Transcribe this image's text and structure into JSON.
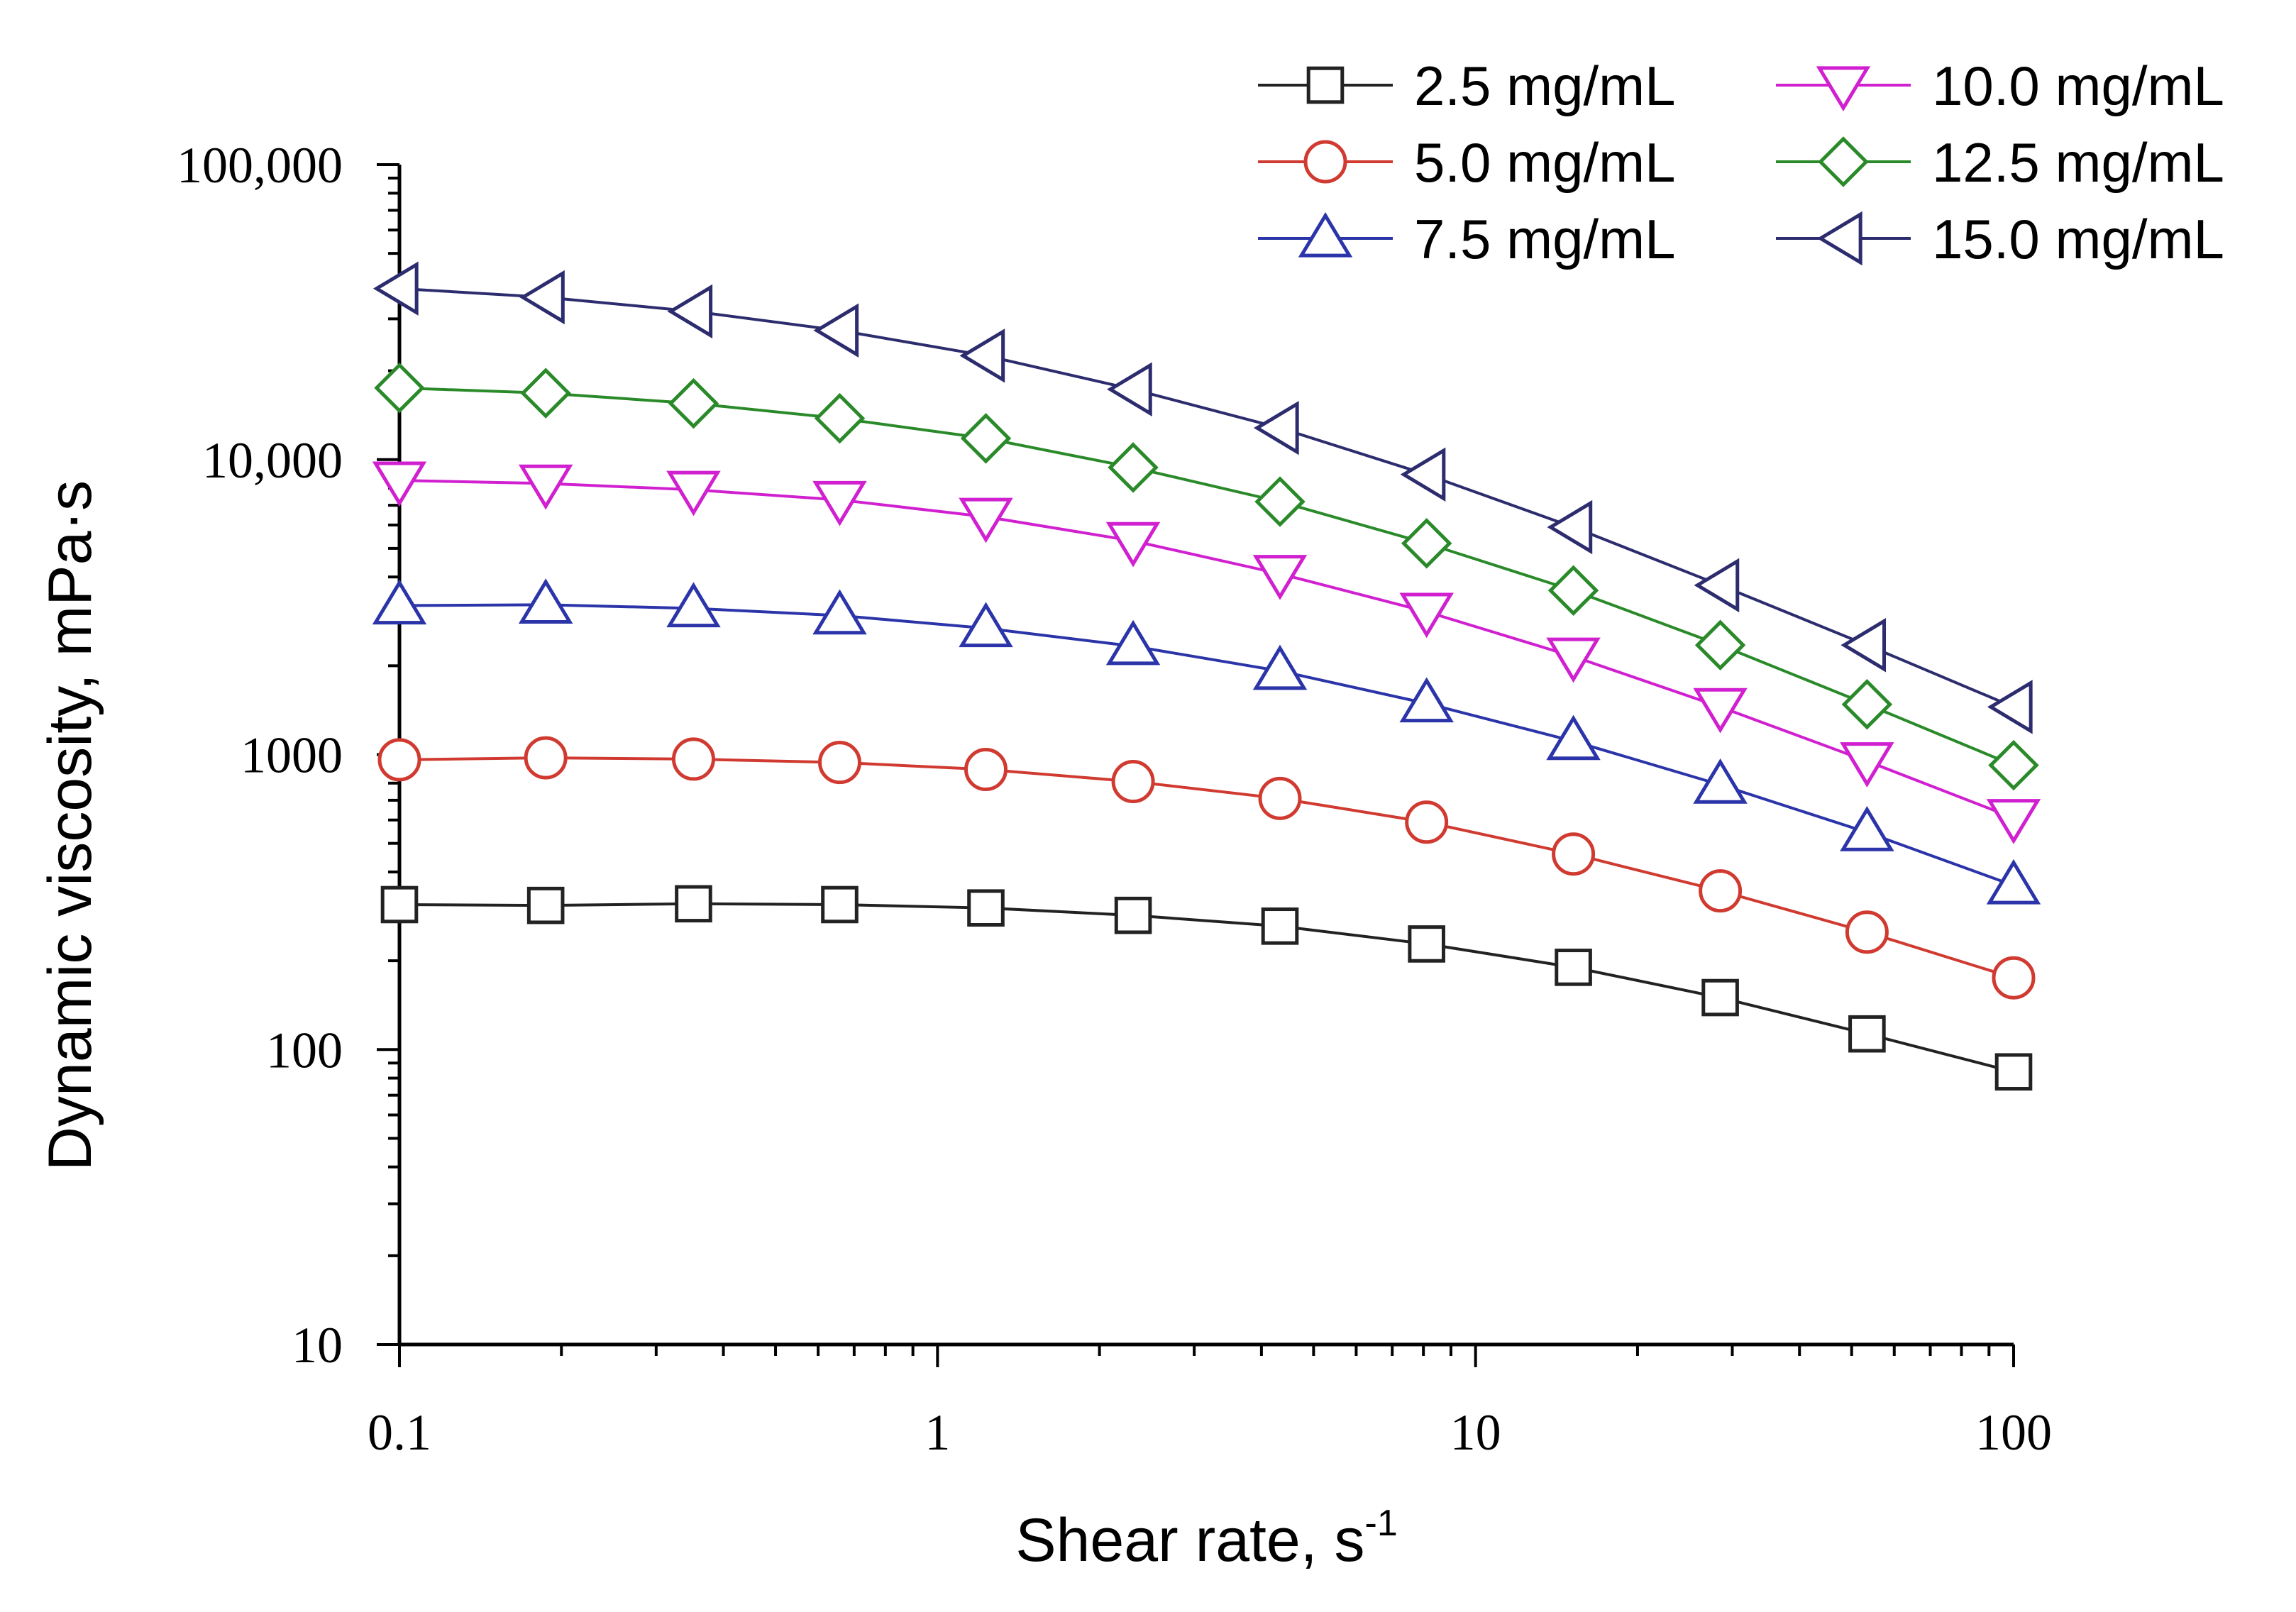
{
  "chart_data": {
    "type": "line",
    "title": "",
    "xlabel": "Shear rate, s",
    "xlabel_superscript": "-1",
    "ylabel": "Dynamic viscosity, mPa·s",
    "xscale": "log",
    "yscale": "log",
    "xlim": [
      0.1,
      100
    ],
    "ylim": [
      10,
      100000
    ],
    "x_ticks": [
      {
        "value": 0.1,
        "label": "0.1"
      },
      {
        "value": 1,
        "label": "1"
      },
      {
        "value": 10,
        "label": "10"
      },
      {
        "value": 100,
        "label": "100"
      }
    ],
    "y_ticks": [
      {
        "value": 10,
        "label": "10"
      },
      {
        "value": 100,
        "label": "100"
      },
      {
        "value": 1000,
        "label": "1000"
      },
      {
        "value": 10000,
        "label": "10,000"
      },
      {
        "value": 100000,
        "label": "100,000"
      }
    ],
    "legend_position": "top-right",
    "x": [
      0.1,
      0.187,
      0.352,
      0.658,
      1.23,
      2.31,
      4.33,
      8.11,
      15.2,
      28.5,
      53.4,
      100
    ],
    "series": [
      {
        "name": "2.5 mg/mL",
        "color": "#222222",
        "marker": "square",
        "values": [
          310,
          308,
          312,
          310,
          302,
          285,
          262,
          228,
          190,
          150,
          113,
          84
        ]
      },
      {
        "name": "5.0 mg/mL",
        "color": "#d03a30",
        "marker": "circle",
        "values": [
          960,
          975,
          965,
          940,
          890,
          810,
          710,
          590,
          460,
          345,
          250,
          175
        ]
      },
      {
        "name": "7.5 mg/mL",
        "color": "#2b34a8",
        "marker": "triangle-up",
        "values": [
          3200,
          3220,
          3130,
          2960,
          2680,
          2330,
          1920,
          1490,
          1110,
          790,
          545,
          360
        ]
      },
      {
        "name": "10.0 mg/mL",
        "color": "#d020d0",
        "marker": "triangle-down",
        "values": [
          8500,
          8300,
          7900,
          7300,
          6400,
          5300,
          4100,
          3050,
          2150,
          1450,
          950,
          610
        ]
      },
      {
        "name": "12.5 mg/mL",
        "color": "#2a8a2a",
        "marker": "diamond",
        "values": [
          17500,
          16800,
          15500,
          13800,
          11800,
          9400,
          7200,
          5200,
          3600,
          2350,
          1480,
          920
        ]
      },
      {
        "name": "15.0 mg/mL",
        "color": "#2c2c6e",
        "marker": "triangle-left",
        "values": [
          38000,
          35500,
          31800,
          27400,
          22500,
          17300,
          12800,
          8900,
          5900,
          3750,
          2350,
          1450
        ]
      }
    ]
  }
}
